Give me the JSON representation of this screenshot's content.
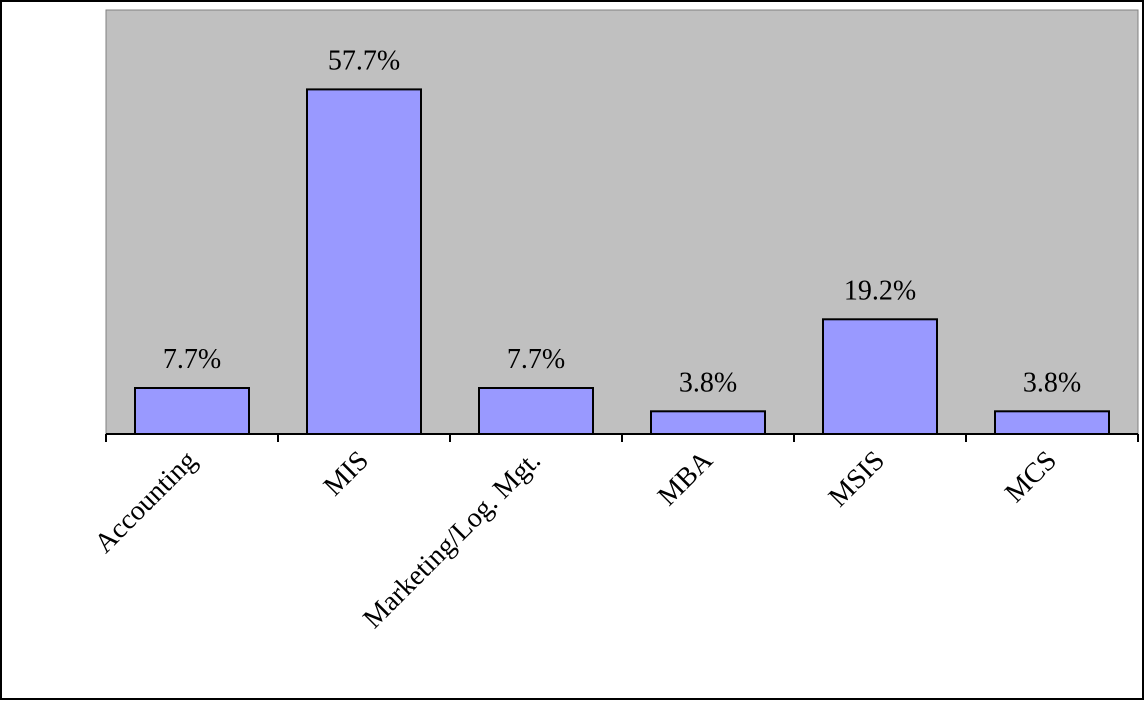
{
  "chart_data": {
    "type": "bar",
    "categories": [
      "Accounting",
      "MIS",
      "Marketing/Log. Mgt.",
      "MBA",
      "MSIS",
      "MCS"
    ],
    "values": [
      7.7,
      57.7,
      7.7,
      3.8,
      19.2,
      3.8
    ],
    "data_labels": [
      "7.7%",
      "57.7%",
      "7.7%",
      "3.8%",
      "19.2%",
      "3.8%"
    ],
    "value_unit": "%",
    "title": "",
    "xlabel": "",
    "ylabel": "",
    "ylim": [
      0,
      71
    ],
    "grid": false,
    "legend": "none",
    "colors": {
      "bar_fill": "#9999ff",
      "bar_stroke": "#000000",
      "plot_background": "#c0c0c0",
      "axis": "#000000"
    }
  }
}
